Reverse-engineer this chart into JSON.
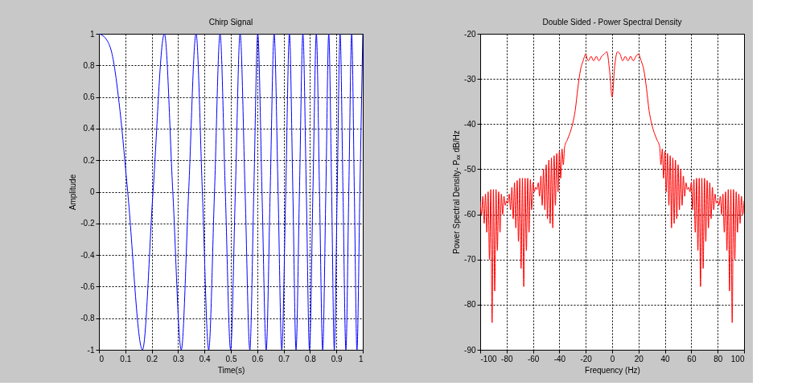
{
  "chart_data": [
    {
      "type": "line",
      "title": "Chirp Signal",
      "xlabel": "Time(s)",
      "ylabel": "Amplitude",
      "x": [
        0,
        0.03,
        0.05,
        0.08,
        0.109,
        0.165,
        0.205,
        0.248,
        0.28,
        0.312,
        0.34,
        0.368,
        0.392,
        0.416,
        0.438,
        0.459,
        0.479,
        0.499,
        0.517,
        0.535,
        0.554,
        0.572,
        0.587,
        0.602,
        0.618,
        0.634,
        0.649,
        0.664,
        0.679,
        0.693,
        0.708,
        0.722,
        0.735,
        0.747,
        0.76,
        0.773,
        0.786,
        0.798,
        0.811,
        0.824,
        0.836,
        0.848,
        0.86,
        0.871,
        0.882,
        0.892,
        0.903,
        0.914,
        0.925,
        0.936,
        0.947,
        0.958,
        0.968,
        0.978,
        0.989,
        1
      ],
      "series": [
        {
          "color": "#0000ff",
          "values": [
            1,
            0.96,
            0.87,
            0.51,
            0,
            -1,
            0,
            1,
            0,
            -1,
            0,
            1,
            0,
            -1,
            0,
            1,
            0,
            -1,
            0,
            1,
            0,
            -1,
            0,
            1,
            0,
            -1,
            0,
            1,
            0,
            -1,
            0,
            1,
            0,
            -1,
            0,
            1,
            0,
            -1,
            0,
            1,
            0,
            -1,
            0,
            1,
            0,
            -1,
            0,
            1,
            0,
            -1,
            0,
            1,
            0,
            -1,
            0,
            1
          ]
        }
      ],
      "xlim": [
        0,
        1
      ],
      "ylim": [
        -1,
        1
      ],
      "xticks": [
        0,
        0.1,
        0.2,
        0.3,
        0.4,
        0.5,
        0.6,
        0.7,
        0.8,
        0.9,
        1
      ],
      "yticks": [
        -1,
        -0.8,
        -0.6,
        -0.4,
        -0.2,
        0,
        0.2,
        0.4,
        0.6,
        0.8,
        1
      ],
      "grid": true
    },
    {
      "type": "line",
      "title": "Double Sided - Power Spectral Density",
      "xlabel": "Frequency (Hz)",
      "ylabel": "Power Spectral Density- Pₓₓ dB/Hz",
      "x": [
        -100,
        -99,
        -98,
        -97,
        -96,
        -95,
        -94,
        -93,
        -92,
        -91,
        -90,
        -89,
        -88,
        -87,
        -86,
        -85,
        -84,
        -83,
        -82,
        -81,
        -80,
        -79,
        -78,
        -77,
        -76,
        -75,
        -74,
        -73,
        -72,
        -71,
        -70,
        -69,
        -68,
        -67,
        -66,
        -65,
        -64,
        -63,
        -62,
        -61,
        -60,
        -59,
        -58,
        -57,
        -56,
        -55,
        -54,
        -53,
        -52,
        -51,
        -50,
        -49,
        -48,
        -47,
        -46,
        -45,
        -44,
        -43,
        -42,
        -41,
        -40,
        -39,
        -38,
        -37,
        -36,
        -34,
        -32,
        -30,
        -28,
        -26,
        -24,
        -22,
        -20,
        -19,
        -18,
        -16,
        -14,
        -12,
        -10,
        -8,
        -6,
        -4,
        -2,
        0,
        2,
        4,
        6,
        8,
        10,
        12,
        14,
        16,
        18,
        20,
        22,
        24,
        26,
        28,
        30,
        32,
        34,
        36,
        37,
        38,
        39,
        40,
        41,
        42,
        43,
        44,
        45,
        46,
        47,
        48,
        49,
        50,
        51,
        52,
        53,
        54,
        55,
        56,
        57,
        58,
        59,
        60,
        61,
        62,
        63,
        64,
        65,
        66,
        67,
        68,
        69,
        70,
        71,
        72,
        73,
        74,
        75,
        76,
        77,
        78,
        79,
        80,
        81,
        82,
        83,
        84,
        85,
        86,
        87,
        88,
        89,
        90,
        91,
        92,
        93,
        94,
        95,
        96,
        97,
        98,
        99,
        100
      ],
      "series": [
        {
          "color": "#ff0000",
          "values": [
            -57,
            -60,
            -56,
            -62,
            -55.5,
            -64,
            -55,
            -70,
            -54.5,
            -84,
            -54.5,
            -77,
            -54.5,
            -68,
            -55,
            -64,
            -55.5,
            -60,
            -56,
            -58,
            -57,
            -57.5,
            -55.5,
            -59,
            -54,
            -61,
            -53,
            -63,
            -52.5,
            -66,
            -52,
            -72,
            -52,
            -76,
            -52,
            -68,
            -52,
            -64,
            -52.3,
            -59,
            -53,
            -55,
            -54,
            -54.5,
            -53,
            -56,
            -51.5,
            -58,
            -50,
            -59,
            -49,
            -61,
            -48,
            -62,
            -47.5,
            -63,
            -47,
            -58,
            -46.5,
            -55,
            -46,
            -52,
            -45.5,
            -49,
            -45,
            -43.5,
            -42,
            -40,
            -37,
            -32,
            -28,
            -26,
            -24.5,
            -25.5,
            -26,
            -25,
            -26,
            -25,
            -26,
            -25,
            -24.5,
            -24,
            -28,
            -34,
            -27,
            -24,
            -24.5,
            -26,
            -25,
            -26,
            -25,
            -26,
            -25,
            -24.5,
            -26,
            -28,
            -32,
            -37,
            -40,
            -42,
            -43.5,
            -45,
            -49,
            -45.5,
            -52,
            -46,
            -55,
            -46.5,
            -58,
            -47,
            -63,
            -47.5,
            -62,
            -48,
            -61,
            -49,
            -59,
            -50,
            -58,
            -51.5,
            -56,
            -53,
            -54.5,
            -54,
            -55,
            -53,
            -59,
            -52.3,
            -64,
            -52,
            -68,
            -52,
            -76,
            -52,
            -72,
            -52,
            -66,
            -52.5,
            -63,
            -53,
            -61,
            -54,
            -59,
            -55.5,
            -57.5,
            -57,
            -58,
            -56,
            -60,
            -55.5,
            -64,
            -55,
            -68,
            -54.5,
            -77,
            -54.5,
            -84,
            -54.5,
            -70,
            -55,
            -64,
            -55.5,
            -62,
            -56,
            -60,
            -57
          ]
        }
      ],
      "xlim": [
        -100,
        100
      ],
      "ylim": [
        -90,
        -20
      ],
      "xticks": [
        -100,
        -80,
        -60,
        -40,
        -20,
        0,
        20,
        40,
        60,
        80,
        100
      ],
      "yticks": [
        -90,
        -80,
        -70,
        -60,
        -50,
        -40,
        -30,
        -20
      ],
      "grid": true
    }
  ]
}
